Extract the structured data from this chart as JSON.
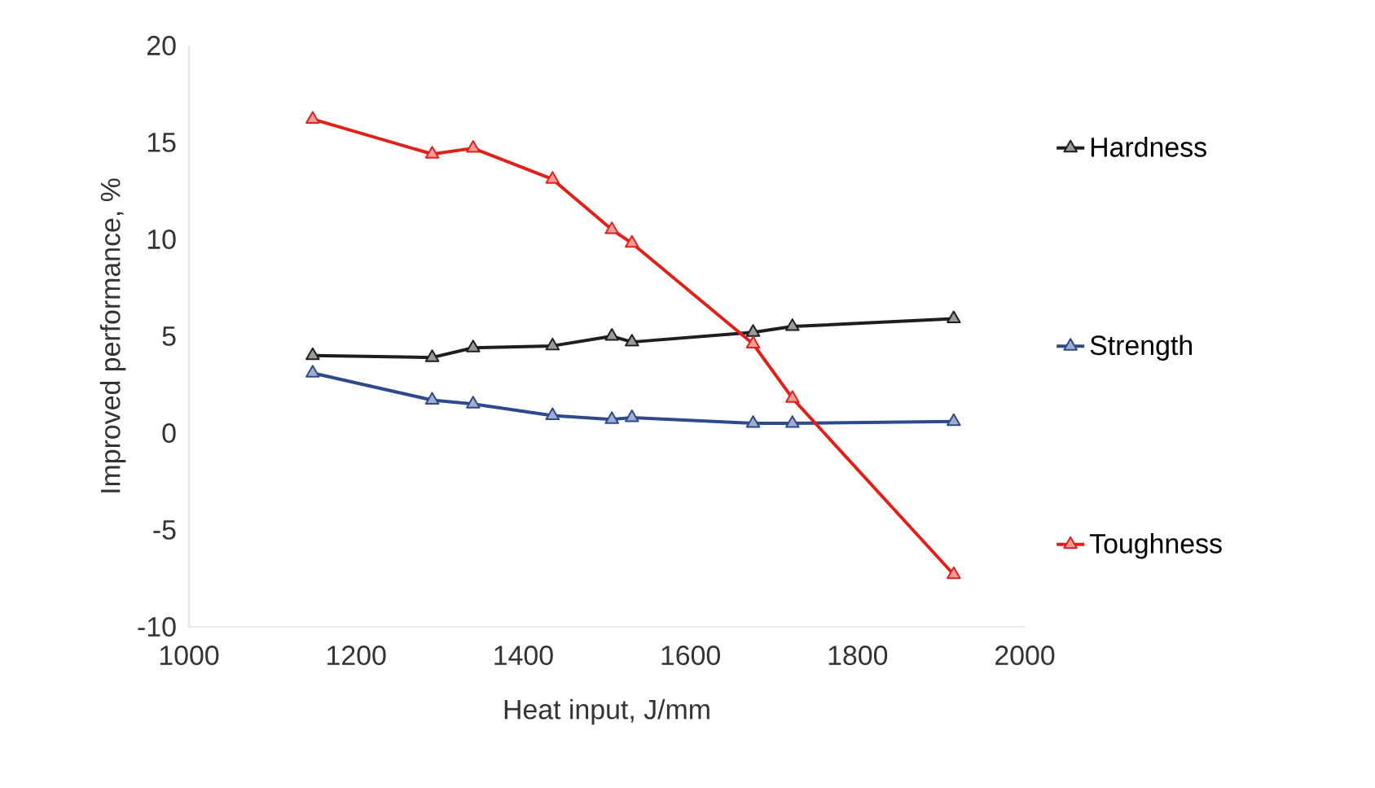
{
  "chart_data": {
    "type": "line",
    "xlabel": "Heat input, J/mm",
    "ylabel": "Improved performance, %",
    "x": [
      1148,
      1291,
      1340,
      1435,
      1506,
      1530,
      1675,
      1722,
      1915
    ],
    "series": [
      {
        "name": "Hardness",
        "color": "#1e1e1e",
        "values": [
          4.0,
          3.9,
          4.4,
          4.5,
          5.0,
          4.7,
          5.2,
          5.5,
          5.9
        ]
      },
      {
        "name": "Strength",
        "color": "#2e4a8c",
        "values": [
          3.1,
          1.7,
          1.5,
          0.9,
          0.7,
          0.8,
          0.5,
          0.5,
          0.6
        ]
      },
      {
        "name": "Toughness",
        "color": "#e0201b",
        "values": [
          16.2,
          14.4,
          14.7,
          13.1,
          10.5,
          9.8,
          4.6,
          1.8,
          -7.3
        ]
      }
    ],
    "xlim": [
      1000,
      2000
    ],
    "xticks": [
      1000,
      1200,
      1400,
      1600,
      1800,
      2000
    ],
    "ylim": [
      -10,
      20
    ],
    "yticks": [
      -10,
      -5,
      0,
      5,
      10,
      15,
      20
    ],
    "legend": "right",
    "marker": "triangle",
    "line_style": "solid"
  }
}
